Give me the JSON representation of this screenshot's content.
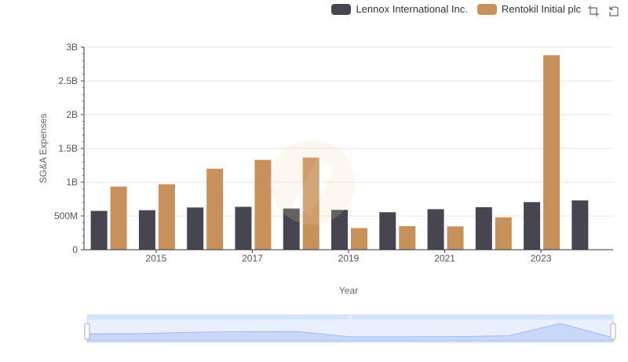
{
  "colors": {
    "lennox": "#474650",
    "rentokil": "#c8915b",
    "axis": "#333333",
    "grid": "#e6e6e6",
    "zoom_fill": "#d7e2fb",
    "zoom_line": "#8fb0f7"
  },
  "legend": {
    "lennox": "Lennox International Inc.",
    "rentokil": "Rentokil Initial plc"
  },
  "toolbox": {
    "zoom_icon": "zoom-icon",
    "restore_icon": "restore-icon"
  },
  "chart_data": {
    "type": "bar",
    "xlabel": "Year",
    "ylabel": "SG&A Expenses",
    "categories": [
      "2014",
      "2015",
      "2016",
      "2017",
      "2018",
      "2019",
      "2020",
      "2021",
      "2022",
      "2023",
      "2024"
    ],
    "x_tick_labels": [
      "2015",
      "2017",
      "2019",
      "2021",
      "2023"
    ],
    "y_tick_labels": [
      "0",
      "500M",
      "1B",
      "1.5B",
      "2B",
      "2.5B",
      "3B"
    ],
    "ylim": [
      0,
      3000000000
    ],
    "grid": true,
    "legend_position": "top-right",
    "series": [
      {
        "name": "Lennox International Inc.",
        "values": [
          575000000,
          585000000,
          625000000,
          635000000,
          610000000,
          590000000,
          555000000,
          600000000,
          630000000,
          705000000,
          730000000
        ]
      },
      {
        "name": "Rentokil Initial plc",
        "values": [
          935000000,
          970000000,
          1200000000,
          1330000000,
          1365000000,
          320000000,
          350000000,
          345000000,
          480000000,
          2880000000,
          null
        ]
      }
    ]
  }
}
